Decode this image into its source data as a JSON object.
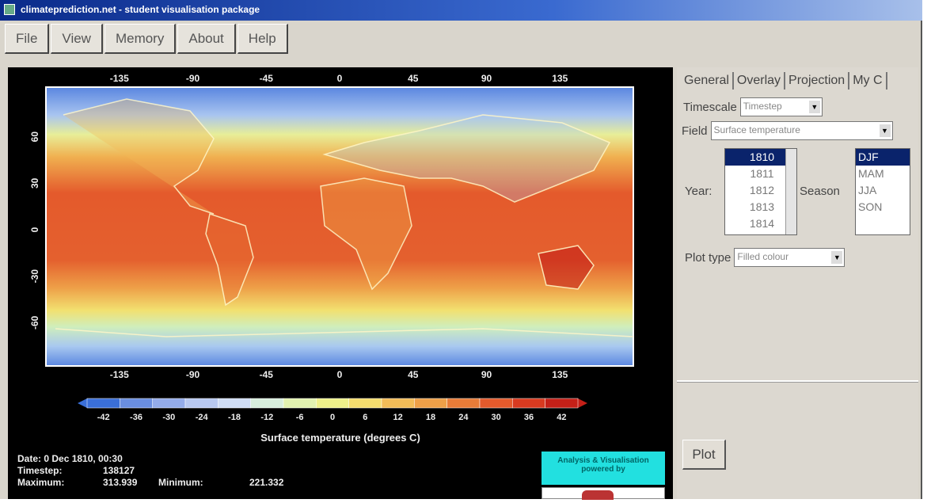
{
  "window": {
    "title": "climateprediction.net - student visualisation package"
  },
  "menu": [
    "File",
    "View",
    "Memory",
    "About",
    "Help"
  ],
  "tabs": [
    "General",
    "Overlay",
    "Projection",
    "My C"
  ],
  "controls": {
    "timescale_label": "Timescale",
    "timescale_value": "Timestep",
    "field_label": "Field",
    "field_value": "Surface temperature",
    "year_label": "Year:",
    "years": [
      "1810",
      "1811",
      "1812",
      "1813",
      "1814"
    ],
    "year_selected": "1810",
    "season_label": "Season",
    "seasons": [
      "DJF",
      "MAM",
      "JJA",
      "SON"
    ],
    "season_selected": "DJF",
    "plottype_label": "Plot type",
    "plottype_value": "Filled colour",
    "plot_button": "Plot"
  },
  "chart_data": {
    "type": "heatmap",
    "xticks_top": [
      "-135",
      "-90",
      "-45",
      "0",
      "45",
      "90",
      "135"
    ],
    "xticks_bottom": [
      "-135",
      "-90",
      "-45",
      "0",
      "45",
      "90",
      "135"
    ],
    "yticks": [
      "60",
      "30",
      "0",
      "-30",
      "-60"
    ],
    "colorbar_ticks": [
      "-42",
      "-36",
      "-30",
      "-24",
      "-18",
      "-12",
      "-6",
      "0",
      "6",
      "12",
      "18",
      "24",
      "30",
      "36",
      "42"
    ],
    "colorbar_colors": [
      "#3a6fd8",
      "#6a8ee0",
      "#94acea",
      "#b8c8f0",
      "#cfdcf4",
      "#d8eedd",
      "#e2f2b0",
      "#eef08a",
      "#f4dc6e",
      "#f2bc58",
      "#eea048",
      "#e87c38",
      "#e45a2c",
      "#d83a20",
      "#c42018"
    ],
    "colorbar_label": "Surface temperature (degrees C)"
  },
  "info": {
    "date": "Date: 0 Dec 1810, 00:30",
    "timestep_label": "Timestep:",
    "timestep_value": "138127",
    "maximum_label": "Maximum:",
    "maximum_value": "313.939",
    "minimum_label": "Minimum:",
    "minimum_value": "221.332"
  },
  "logo": {
    "text": "Analysis & Visualisation powered by"
  }
}
